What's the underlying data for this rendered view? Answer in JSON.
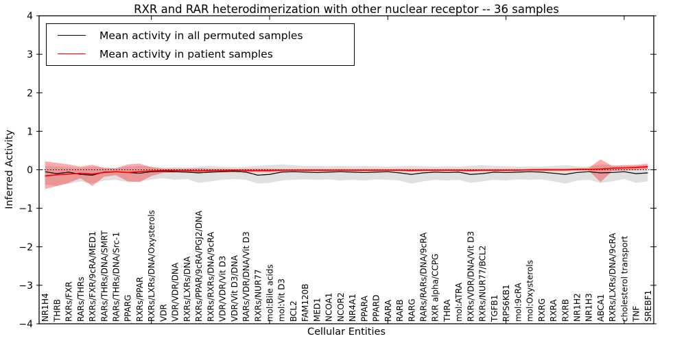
{
  "chart_data": {
    "type": "line",
    "title": "RXR and RAR heterodimerization with other nuclear receptor -- 36 samples",
    "xlabel": "Cellular Entities",
    "ylabel": "Inferred Activity",
    "ylim": [
      -4,
      4
    ],
    "grid": false,
    "legend_position": "upper left",
    "zero_line": {
      "style": "dotted",
      "color": "#000000",
      "value": 0
    },
    "yticks": [
      {
        "label": "4",
        "value": 4
      },
      {
        "label": "3",
        "value": 3
      },
      {
        "label": "2",
        "value": 2
      },
      {
        "label": "1",
        "value": 1
      },
      {
        "label": "0",
        "value": 0
      },
      {
        "label": "−1",
        "value": -1
      },
      {
        "label": "−2",
        "value": -2
      },
      {
        "label": "−3",
        "value": -3
      },
      {
        "label": "−4",
        "value": -4
      }
    ],
    "x_major_tick_indices": [
      9,
      19,
      29,
      39,
      49
    ],
    "categories": [
      "NR1H4",
      "THRB",
      "RXRs/FXR",
      "RARs/THRs",
      "RXRs/FXR/9cRA/MED1",
      "RARs/THRs/DNA/SMRT",
      "RARs/THRs/DNA/Src-1",
      "PPARG",
      "RXRs/PPAR",
      "RXRs/LXRs/DNA/Oxysterols",
      "VDR",
      "VDR/VDR/DNA",
      "RXRs/LXRs/DNA",
      "RXRs/PPAR/9cRA/PGJ2/DNA",
      "RXRs/RXRs/DNA/9cRA",
      "VDR/VDR/Vit D3",
      "VDR/Vit D3/DNA",
      "RARs/VDR/DNA/Vit D3",
      "RXRs/NUR77",
      "mol:Bile acids",
      "mol:Vit D3",
      "BCL2",
      "FAM120B",
      "MED1",
      "NCOA1",
      "NCOR2",
      "NR4A1",
      "PPARA",
      "PPARD",
      "RARA",
      "RARB",
      "RARG",
      "RARs/RARs/DNA/9cRA",
      "RXR alpha/CCPG",
      "THRA",
      "mol:ATRA",
      "RXRs/VDR/DNA/Vit D3",
      "RXRs/NUR77/BCL2",
      "TGFB1",
      "RPS6KB1",
      "mol:9cRA",
      "mol:Oxysterols",
      "RXRG",
      "RXRA",
      "RXRB",
      "NR1H2",
      "NR1H3",
      "ABCA1",
      "RXRs/LXRs/DNA/9cRA",
      "cholesterol transport",
      "TNF",
      "SREBF1"
    ],
    "legend": [
      {
        "label": "Mean activity in all permuted samples",
        "color": "#000000"
      },
      {
        "label": "Mean activity in patient samples",
        "color": "#ff0000"
      }
    ],
    "series": [
      {
        "id": "permuted-mean",
        "name": "Mean activity in all permuted samples",
        "color": "#000000",
        "width": 1.2,
        "values": [
          -0.05,
          -0.1,
          -0.06,
          -0.12,
          -0.14,
          -0.06,
          -0.05,
          -0.07,
          -0.09,
          -0.05,
          -0.04,
          -0.05,
          -0.06,
          -0.08,
          -0.06,
          -0.05,
          -0.04,
          -0.06,
          -0.14,
          -0.12,
          -0.06,
          -0.05,
          -0.06,
          -0.07,
          -0.06,
          -0.05,
          -0.06,
          -0.07,
          -0.06,
          -0.05,
          -0.08,
          -0.12,
          -0.08,
          -0.06,
          -0.07,
          -0.06,
          -0.12,
          -0.1,
          -0.06,
          -0.07,
          -0.06,
          -0.05,
          -0.06,
          -0.09,
          -0.12,
          -0.07,
          -0.05,
          -0.08,
          -0.07,
          -0.05,
          -0.1,
          -0.08
        ]
      },
      {
        "id": "patient-mean",
        "name": "Mean activity in patient samples",
        "color": "#ff0000",
        "width": 1.7,
        "values": [
          -0.16,
          -0.13,
          -0.11,
          -0.09,
          -0.11,
          -0.07,
          -0.05,
          -0.07,
          -0.05,
          -0.03,
          -0.02,
          -0.02,
          -0.02,
          -0.03,
          -0.02,
          -0.02,
          -0.01,
          -0.02,
          -0.02,
          -0.02,
          -0.01,
          -0.01,
          -0.01,
          -0.01,
          -0.01,
          -0.01,
          -0.01,
          -0.01,
          -0.01,
          -0.01,
          -0.01,
          -0.02,
          -0.01,
          -0.01,
          -0.01,
          -0.01,
          -0.02,
          -0.01,
          -0.01,
          -0.01,
          -0.01,
          0.0,
          0.0,
          0.0,
          0.0,
          0.01,
          0.01,
          0.02,
          0.04,
          0.05,
          0.06,
          0.08
        ]
      }
    ],
    "bands": [
      {
        "id": "permuted-range",
        "color": "#000000",
        "opacity": 0.12,
        "upper": [
          0.1,
          0.08,
          0.06,
          0.05,
          0.08,
          0.06,
          0.05,
          0.08,
          0.1,
          0.08,
          0.06,
          0.07,
          0.06,
          0.08,
          0.1,
          0.08,
          0.07,
          0.08,
          0.1,
          0.12,
          0.14,
          0.12,
          0.1,
          0.1,
          0.09,
          0.1,
          0.09,
          0.1,
          0.09,
          0.08,
          0.09,
          0.1,
          0.09,
          0.08,
          0.09,
          0.08,
          0.1,
          0.12,
          0.1,
          0.09,
          0.08,
          0.09,
          0.08,
          0.1,
          0.12,
          0.09,
          0.08,
          0.14,
          0.12,
          0.1,
          0.1,
          0.12
        ],
        "lower": [
          -0.38,
          -0.42,
          -0.36,
          -0.3,
          -0.36,
          -0.28,
          -0.26,
          -0.32,
          -0.3,
          -0.25,
          -0.22,
          -0.26,
          -0.24,
          -0.34,
          -0.3,
          -0.26,
          -0.24,
          -0.26,
          -0.36,
          -0.34,
          -0.28,
          -0.26,
          -0.25,
          -0.26,
          -0.25,
          -0.28,
          -0.26,
          -0.28,
          -0.25,
          -0.26,
          -0.28,
          -0.36,
          -0.3,
          -0.26,
          -0.28,
          -0.26,
          -0.34,
          -0.3,
          -0.26,
          -0.28,
          -0.25,
          -0.26,
          -0.25,
          -0.3,
          -0.36,
          -0.28,
          -0.26,
          -0.34,
          -0.3,
          -0.24,
          -0.34,
          -0.3
        ]
      },
      {
        "id": "patient-range",
        "color": "#ff0000",
        "opacity": 0.33,
        "upper": [
          0.22,
          0.18,
          0.14,
          0.08,
          0.13,
          0.05,
          0.04,
          0.14,
          0.16,
          0.07,
          0.03,
          0.03,
          0.03,
          0.04,
          0.03,
          0.03,
          0.02,
          0.03,
          0.03,
          0.03,
          0.02,
          0.02,
          0.02,
          0.02,
          0.02,
          0.02,
          0.02,
          0.02,
          0.02,
          0.02,
          0.02,
          0.02,
          0.02,
          0.02,
          0.02,
          0.02,
          0.02,
          0.02,
          0.02,
          0.02,
          0.02,
          0.02,
          0.03,
          0.03,
          0.03,
          0.04,
          0.05,
          0.27,
          0.1,
          0.12,
          0.13,
          0.16
        ],
        "lower": [
          -0.5,
          -0.42,
          -0.34,
          -0.22,
          -0.42,
          -0.18,
          -0.14,
          -0.3,
          -0.32,
          -0.16,
          -0.08,
          -0.07,
          -0.07,
          -0.08,
          -0.07,
          -0.06,
          -0.05,
          -0.06,
          -0.06,
          -0.06,
          -0.05,
          -0.04,
          -0.04,
          -0.04,
          -0.04,
          -0.04,
          -0.04,
          -0.04,
          -0.04,
          -0.04,
          -0.04,
          -0.05,
          -0.04,
          -0.04,
          -0.04,
          -0.04,
          -0.05,
          -0.04,
          -0.04,
          -0.04,
          -0.03,
          -0.03,
          -0.03,
          -0.03,
          -0.03,
          -0.02,
          -0.02,
          -0.32,
          -0.03,
          -0.02,
          -0.01,
          0.02
        ]
      }
    ]
  }
}
